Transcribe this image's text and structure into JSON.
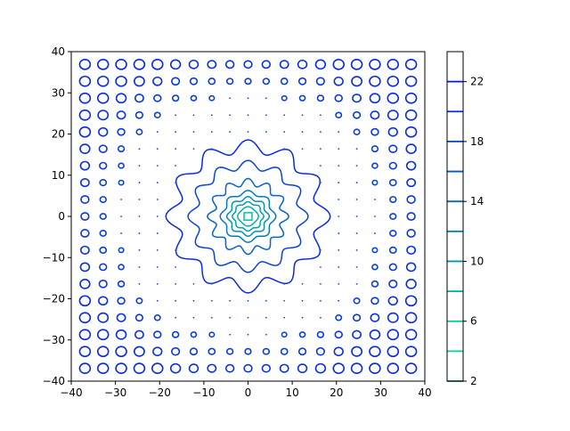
{
  "chart_data": {
    "type": "contour",
    "title": "",
    "xlabel": "",
    "ylabel": "",
    "xlim": [
      -40,
      40
    ],
    "ylim": [
      -40,
      40
    ],
    "x_ticks": [
      -40,
      -30,
      -20,
      -10,
      0,
      10,
      20,
      30,
      40
    ],
    "y_ticks": [
      -40,
      -30,
      -20,
      -10,
      0,
      10,
      20,
      30,
      40
    ],
    "grid": false,
    "levels": [
      2,
      4,
      6,
      8,
      10,
      12,
      14,
      16,
      18,
      20,
      22
    ],
    "level_colors": [
      "#009a73",
      "#00d1a0",
      "#00c49a",
      "#00afa0",
      "#0098a8",
      "#0083b0",
      "#006cb8",
      "#0058c2",
      "#0044cc",
      "#0030d8",
      "#001ae4"
    ],
    "colormap": "winter",
    "colorbar": {
      "range": [
        2,
        24
      ],
      "tick_labels": [
        "2",
        "6",
        "10",
        "14",
        "18",
        "22"
      ],
      "tick_values": [
        2,
        6,
        10,
        14,
        18,
        22
      ]
    },
    "center_color": "#00c8a0",
    "outer_color": "#0a2ae8"
  }
}
